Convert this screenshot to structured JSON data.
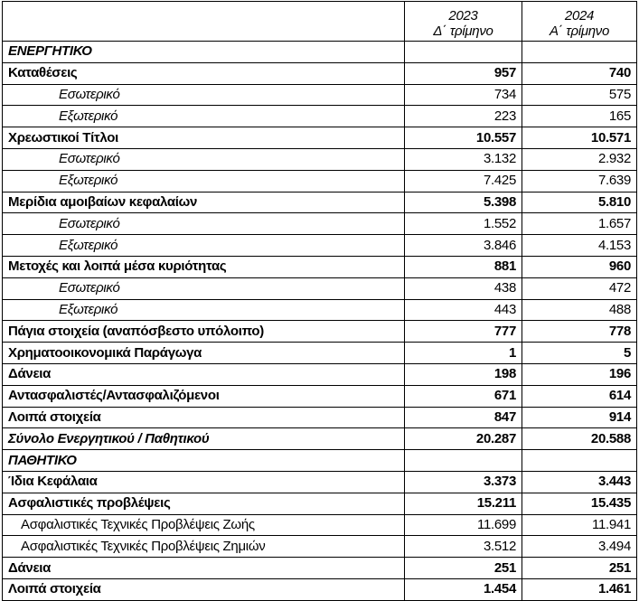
{
  "header": {
    "col1_line1": "2023",
    "col1_line2": "Δ΄ τρίμηνο",
    "col2_line1": "2024",
    "col2_line2": "Α΄  τρίμηνο"
  },
  "rows": [
    {
      "type": "section",
      "label": "ΕΝΕΡΓΗΤΙΚΟ",
      "v1": "",
      "v2": ""
    },
    {
      "type": "main",
      "label": "Καταθέσεις",
      "v1": "957",
      "v2": "740"
    },
    {
      "type": "sub",
      "label": "Εσωτερικό",
      "v1": "734",
      "v2": "575"
    },
    {
      "type": "sub",
      "label": "Εξωτερικό",
      "v1": "223",
      "v2": "165"
    },
    {
      "type": "main",
      "label": "Χρεωστικοί Τίτλοι",
      "v1": "10.557",
      "v2": "10.571"
    },
    {
      "type": "sub",
      "label": "Εσωτερικό",
      "v1": "3.132",
      "v2": "2.932"
    },
    {
      "type": "sub",
      "label": "Εξωτερικό",
      "v1": "7.425",
      "v2": "7.639"
    },
    {
      "type": "main",
      "label": "Μερίδια αμοιβαίων κεφαλαίων",
      "v1": "5.398",
      "v2": "5.810"
    },
    {
      "type": "sub",
      "label": "Εσωτερικό",
      "v1": "1.552",
      "v2": "1.657"
    },
    {
      "type": "sub",
      "label": "Εξωτερικό",
      "v1": "3.846",
      "v2": "4.153"
    },
    {
      "type": "main",
      "label": "Μετοχές και λοιπά μέσα κυριότητας",
      "v1": "881",
      "v2": "960"
    },
    {
      "type": "sub",
      "label": "Εσωτερικό",
      "v1": "438",
      "v2": "472"
    },
    {
      "type": "sub",
      "label": "Εξωτερικό",
      "v1": "443",
      "v2": "488"
    },
    {
      "type": "main",
      "label": "Πάγια στοιχεία (αναπόσβεστο υπόλοιπο)",
      "v1": "777",
      "v2": "778"
    },
    {
      "type": "main",
      "label": "Χρηματοοικονομικά Παράγωγα",
      "v1": "1",
      "v2": "5"
    },
    {
      "type": "main",
      "label": "Δάνεια",
      "v1": "198",
      "v2": "196"
    },
    {
      "type": "main",
      "label": "Αντασφαλιστές/Αντασφαλιζόμενοι",
      "v1": "671",
      "v2": "614"
    },
    {
      "type": "main",
      "label": "Λοιπά στοιχεία",
      "v1": "847",
      "v2": "914"
    },
    {
      "type": "total",
      "label": "Σύνολο Ενεργητικού / Παθητικού",
      "v1": "20.287",
      "v2": "20.588"
    },
    {
      "type": "section",
      "label": "ΠΑΘΗΤΙΚΟ",
      "v1": "",
      "v2": ""
    },
    {
      "type": "main",
      "label": "Ίδια Κεφάλαια",
      "v1": "3.373",
      "v2": "3.443"
    },
    {
      "type": "main",
      "label": "Ασφαλιστικές προβλέψεις",
      "v1": "15.211",
      "v2": "15.435"
    },
    {
      "type": "sub2",
      "label": "Ασφαλιστικές Τεχνικές Προβλέψεις Ζωής",
      "v1": "11.699",
      "v2": "11.941"
    },
    {
      "type": "sub2",
      "label": "Ασφαλιστικές Τεχνικές Προβλέψεις Ζημιών",
      "v1": "3.512",
      "v2": "3.494"
    },
    {
      "type": "main",
      "label": "Δάνεια",
      "v1": "251",
      "v2": "251"
    },
    {
      "type": "main",
      "label": "Λοιπά στοιχεία",
      "v1": "1.454",
      "v2": "1.461"
    }
  ]
}
